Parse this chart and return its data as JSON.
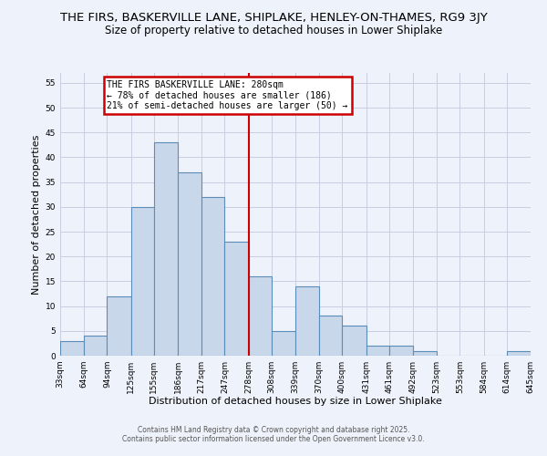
{
  "title": "THE FIRS, BASKERVILLE LANE, SHIPLAKE, HENLEY-ON-THAMES, RG9 3JY",
  "subtitle": "Size of property relative to detached houses in Lower Shiplake",
  "xlabel": "Distribution of detached houses by size in Lower Shiplake",
  "ylabel": "Number of detached properties",
  "bar_values": [
    3,
    4,
    12,
    30,
    43,
    37,
    32,
    23,
    16,
    5,
    14,
    8,
    6,
    2,
    2,
    1,
    0,
    0,
    0,
    1
  ],
  "bin_edges": [
    33,
    64,
    94,
    125,
    155,
    186,
    217,
    247,
    278,
    308,
    339,
    370,
    400,
    431,
    461,
    492,
    523,
    553,
    584,
    614,
    645
  ],
  "tick_labels": [
    "33sqm",
    "64sqm",
    "94sqm",
    "125sqm",
    "155sqm",
    "186sqm",
    "217sqm",
    "247sqm",
    "278sqm",
    "308sqm",
    "339sqm",
    "370sqm",
    "400sqm",
    "431sqm",
    "461sqm",
    "492sqm",
    "523sqm",
    "553sqm",
    "584sqm",
    "614sqm",
    "645sqm"
  ],
  "bar_color": "#c8d8ea",
  "bar_edge_color": "#5b8db8",
  "vline_x": 278,
  "vline_color": "#cc0000",
  "ylim": [
    0,
    57
  ],
  "yticks": [
    0,
    5,
    10,
    15,
    20,
    25,
    30,
    35,
    40,
    45,
    50,
    55
  ],
  "annotation_title": "THE FIRS BASKERVILLE LANE: 280sqm",
  "annotation_line1": "← 78% of detached houses are smaller (186)",
  "annotation_line2": "21% of semi-detached houses are larger (50) →",
  "annotation_box_color": "#cc0000",
  "background_color": "#eef2fa",
  "grid_color": "#c8cee0",
  "footer_line1": "Contains HM Land Registry data © Crown copyright and database right 2025.",
  "footer_line2": "Contains public sector information licensed under the Open Government Licence v3.0.",
  "title_fontsize": 9.5,
  "subtitle_fontsize": 8.5,
  "axis_label_fontsize": 8,
  "tick_fontsize": 6.5,
  "annot_fontsize": 7
}
